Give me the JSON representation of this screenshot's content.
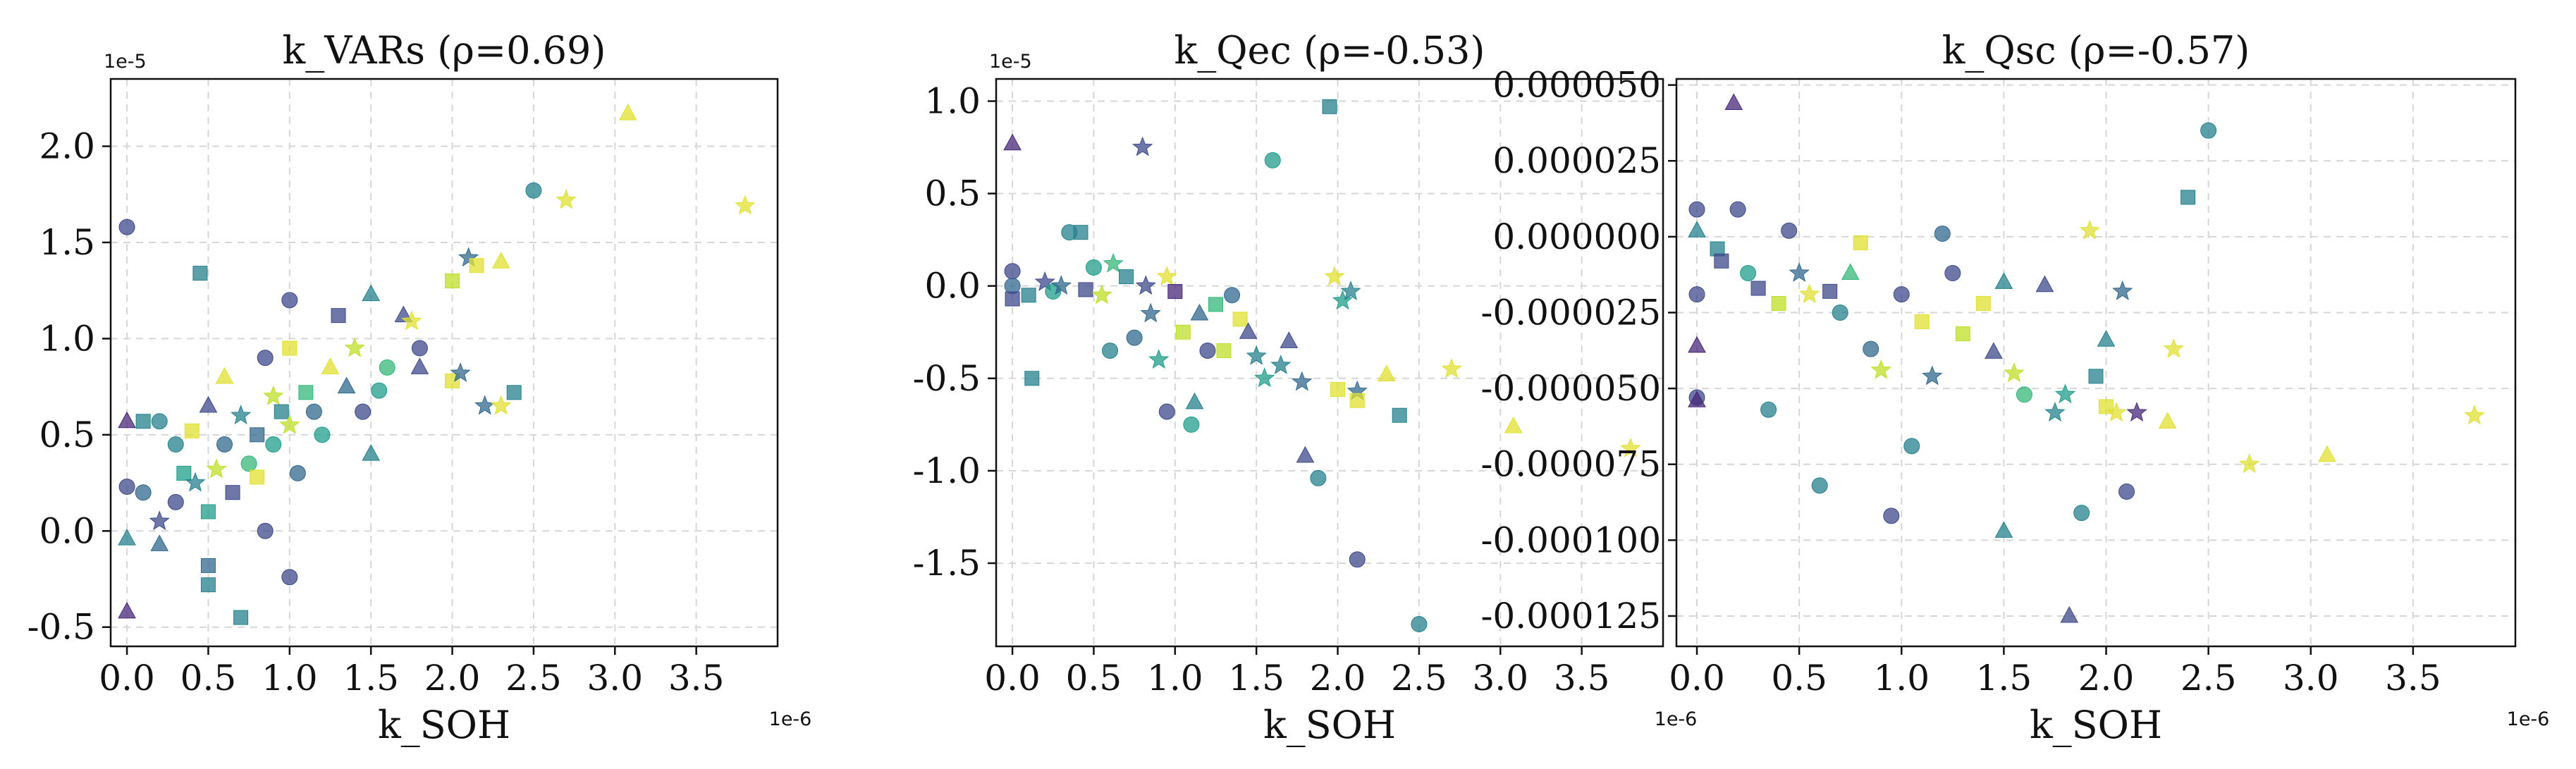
{
  "figure": {
    "colors": [
      "#482878",
      "#3e4a89",
      "#31688e",
      "#26828e",
      "#1f9e89",
      "#35b779",
      "#bddf26",
      "#e0e031"
    ]
  },
  "chart_data": [
    {
      "type": "scatter",
      "title": "k_VARs (ρ=0.69)",
      "xlabel": "k_SOH",
      "ylabel": "",
      "x_offset": "1e-6",
      "y_offset": "1e-5",
      "xlim": [
        -0.1,
        4.0
      ],
      "ylim": [
        -0.6,
        2.35
      ],
      "xticks": [
        0.0,
        0.5,
        1.0,
        1.5,
        2.0,
        2.5,
        3.0,
        3.5
      ],
      "xtick_labels": [
        "0.0",
        "0.5",
        "1.0",
        "1.5",
        "2.0",
        "2.5",
        "3.0",
        "3.5"
      ],
      "yticks": [
        -0.5,
        0.0,
        0.5,
        1.0,
        1.5,
        2.0
      ],
      "ytick_labels": [
        "-0.5",
        "0.0",
        "0.5",
        "1.0",
        "1.5",
        "2.0"
      ],
      "grid": true,
      "points": [
        [
          0.0,
          1.58,
          1,
          "o"
        ],
        [
          0.0,
          0.57,
          0,
          "^"
        ],
        [
          0.0,
          0.23,
          1,
          "o"
        ],
        [
          0.0,
          -0.04,
          3,
          "^"
        ],
        [
          0.0,
          -0.42,
          0,
          "^"
        ],
        [
          0.1,
          0.57,
          3,
          "s"
        ],
        [
          0.1,
          0.2,
          2,
          "o"
        ],
        [
          0.2,
          0.57,
          3,
          "o"
        ],
        [
          0.2,
          0.05,
          1,
          "*"
        ],
        [
          0.2,
          -0.07,
          2,
          "^"
        ],
        [
          0.3,
          0.45,
          3,
          "o"
        ],
        [
          0.3,
          0.15,
          1,
          "o"
        ],
        [
          0.35,
          0.3,
          4,
          "s"
        ],
        [
          0.4,
          0.52,
          7,
          "s"
        ],
        [
          0.42,
          0.25,
          3,
          "*"
        ],
        [
          0.45,
          1.34,
          3,
          "s"
        ],
        [
          0.5,
          0.65,
          1,
          "^"
        ],
        [
          0.5,
          0.1,
          4,
          "s"
        ],
        [
          0.5,
          -0.18,
          2,
          "s"
        ],
        [
          0.5,
          -0.28,
          3,
          "s"
        ],
        [
          0.55,
          0.32,
          6,
          "*"
        ],
        [
          0.6,
          0.8,
          7,
          "^"
        ],
        [
          0.6,
          0.45,
          2,
          "o"
        ],
        [
          0.65,
          0.2,
          1,
          "s"
        ],
        [
          0.7,
          0.6,
          3,
          "*"
        ],
        [
          0.7,
          -0.45,
          3,
          "s"
        ],
        [
          0.75,
          0.35,
          5,
          "o"
        ],
        [
          0.8,
          0.5,
          2,
          "s"
        ],
        [
          0.8,
          0.28,
          7,
          "s"
        ],
        [
          0.85,
          0.9,
          1,
          "o"
        ],
        [
          0.85,
          0.0,
          1,
          "o"
        ],
        [
          0.9,
          0.7,
          6,
          "*"
        ],
        [
          0.9,
          0.45,
          4,
          "o"
        ],
        [
          0.95,
          0.62,
          3,
          "s"
        ],
        [
          1.0,
          1.2,
          1,
          "o"
        ],
        [
          1.0,
          0.95,
          7,
          "s"
        ],
        [
          1.0,
          0.55,
          6,
          "*"
        ],
        [
          1.0,
          -0.24,
          1,
          "o"
        ],
        [
          1.05,
          0.3,
          2,
          "o"
        ],
        [
          1.1,
          0.72,
          5,
          "s"
        ],
        [
          1.15,
          0.62,
          2,
          "o"
        ],
        [
          1.2,
          0.5,
          4,
          "o"
        ],
        [
          1.25,
          0.85,
          7,
          "^"
        ],
        [
          1.3,
          1.12,
          1,
          "s"
        ],
        [
          1.35,
          0.75,
          2,
          "^"
        ],
        [
          1.4,
          0.95,
          6,
          "*"
        ],
        [
          1.45,
          0.62,
          1,
          "o"
        ],
        [
          1.5,
          1.23,
          3,
          "^"
        ],
        [
          1.5,
          0.4,
          3,
          "^"
        ],
        [
          1.55,
          0.73,
          4,
          "o"
        ],
        [
          1.6,
          0.85,
          5,
          "o"
        ],
        [
          1.7,
          1.12,
          1,
          "^"
        ],
        [
          1.75,
          1.09,
          7,
          "*"
        ],
        [
          1.8,
          0.95,
          1,
          "o"
        ],
        [
          1.8,
          0.85,
          1,
          "^"
        ],
        [
          2.0,
          1.3,
          6,
          "s"
        ],
        [
          2.0,
          0.78,
          7,
          "s"
        ],
        [
          2.05,
          0.82,
          2,
          "*"
        ],
        [
          2.1,
          1.42,
          2,
          "*"
        ],
        [
          2.15,
          1.38,
          7,
          "s"
        ],
        [
          2.2,
          0.65,
          2,
          "*"
        ],
        [
          2.3,
          1.4,
          7,
          "^"
        ],
        [
          2.3,
          0.65,
          7,
          "*"
        ],
        [
          2.38,
          0.72,
          3,
          "s"
        ],
        [
          2.5,
          1.77,
          3,
          "o"
        ],
        [
          2.7,
          1.72,
          7,
          "*"
        ],
        [
          3.08,
          2.17,
          7,
          "^"
        ],
        [
          3.8,
          1.69,
          7,
          "*"
        ]
      ]
    },
    {
      "type": "scatter",
      "title": "k_Qec (ρ=-0.53)",
      "xlabel": "k_SOH",
      "ylabel": "",
      "x_offset": "1e-6",
      "y_offset": "1e-5",
      "xlim": [
        -0.1,
        4.0
      ],
      "ylim": [
        -1.95,
        1.12
      ],
      "xticks": [
        0.0,
        0.5,
        1.0,
        1.5,
        2.0,
        2.5,
        3.0,
        3.5
      ],
      "xtick_labels": [
        "0.0",
        "0.5",
        "1.0",
        "1.5",
        "2.0",
        "2.5",
        "3.0",
        "3.5"
      ],
      "yticks": [
        -1.5,
        -1.0,
        -0.5,
        0.0,
        0.5,
        1.0
      ],
      "ytick_labels": [
        "-1.5",
        "-1.0",
        "-0.5",
        "0.0",
        "0.5",
        "1.0"
      ],
      "grid": true,
      "points": [
        [
          0.0,
          0.77,
          0,
          "^"
        ],
        [
          0.0,
          0.08,
          1,
          "o"
        ],
        [
          0.0,
          0.0,
          2,
          "o"
        ],
        [
          0.0,
          -0.07,
          1,
          "s"
        ],
        [
          0.1,
          -0.05,
          3,
          "s"
        ],
        [
          0.12,
          -0.5,
          3,
          "s"
        ],
        [
          0.2,
          0.02,
          1,
          "*"
        ],
        [
          0.25,
          -0.03,
          4,
          "o"
        ],
        [
          0.3,
          0.0,
          2,
          "*"
        ],
        [
          0.35,
          0.29,
          3,
          "o"
        ],
        [
          0.42,
          0.29,
          3,
          "s"
        ],
        [
          0.45,
          -0.02,
          1,
          "s"
        ],
        [
          0.5,
          0.1,
          4,
          "o"
        ],
        [
          0.55,
          -0.05,
          6,
          "*"
        ],
        [
          0.6,
          -0.35,
          3,
          "o"
        ],
        [
          0.62,
          0.12,
          5,
          "*"
        ],
        [
          0.7,
          0.05,
          3,
          "s"
        ],
        [
          0.75,
          -0.28,
          2,
          "o"
        ],
        [
          0.8,
          0.75,
          1,
          "*"
        ],
        [
          0.82,
          0.0,
          1,
          "*"
        ],
        [
          0.85,
          -0.15,
          2,
          "*"
        ],
        [
          0.9,
          -0.4,
          4,
          "*"
        ],
        [
          0.95,
          0.05,
          7,
          "*"
        ],
        [
          0.95,
          -0.68,
          1,
          "o"
        ],
        [
          1.0,
          -0.03,
          0,
          "s"
        ],
        [
          1.05,
          -0.25,
          6,
          "s"
        ],
        [
          1.1,
          -0.75,
          4,
          "o"
        ],
        [
          1.12,
          -0.63,
          3,
          "^"
        ],
        [
          1.15,
          -0.15,
          2,
          "^"
        ],
        [
          1.2,
          -0.35,
          1,
          "o"
        ],
        [
          1.25,
          -0.1,
          5,
          "s"
        ],
        [
          1.3,
          -0.35,
          6,
          "s"
        ],
        [
          1.35,
          -0.05,
          2,
          "o"
        ],
        [
          1.4,
          -0.18,
          7,
          "s"
        ],
        [
          1.45,
          -0.25,
          1,
          "^"
        ],
        [
          1.5,
          -0.38,
          3,
          "*"
        ],
        [
          1.55,
          -0.5,
          4,
          "*"
        ],
        [
          1.6,
          0.68,
          4,
          "o"
        ],
        [
          1.65,
          -0.43,
          3,
          "*"
        ],
        [
          1.7,
          -0.3,
          1,
          "^"
        ],
        [
          1.78,
          -0.52,
          2,
          "*"
        ],
        [
          1.8,
          -0.92,
          1,
          "^"
        ],
        [
          1.88,
          -1.04,
          3,
          "o"
        ],
        [
          1.95,
          0.97,
          3,
          "s"
        ],
        [
          1.98,
          0.05,
          7,
          "*"
        ],
        [
          2.0,
          -0.56,
          7,
          "s"
        ],
        [
          2.03,
          -0.08,
          4,
          "*"
        ],
        [
          2.08,
          -0.03,
          3,
          "*"
        ],
        [
          2.12,
          -0.57,
          2,
          "*"
        ],
        [
          2.12,
          -0.62,
          7,
          "s"
        ],
        [
          2.12,
          -1.48,
          1,
          "o"
        ],
        [
          2.3,
          -0.48,
          7,
          "^"
        ],
        [
          2.38,
          -0.7,
          3,
          "s"
        ],
        [
          2.5,
          -1.83,
          3,
          "o"
        ],
        [
          2.7,
          -0.45,
          7,
          "*"
        ],
        [
          3.08,
          -0.76,
          7,
          "^"
        ],
        [
          3.8,
          -0.88,
          7,
          "*"
        ]
      ]
    },
    {
      "type": "scatter",
      "title": "k_Qsc (ρ=-0.57)",
      "xlabel": "k_SOH",
      "ylabel": "",
      "x_offset": "1e-6",
      "y_offset": "",
      "xlim": [
        -0.1,
        4.0
      ],
      "ylim": [
        -0.000135,
        5.2e-05
      ],
      "xticks": [
        0.0,
        0.5,
        1.0,
        1.5,
        2.0,
        2.5,
        3.0,
        3.5
      ],
      "xtick_labels": [
        "0.0",
        "0.5",
        "1.0",
        "1.5",
        "2.0",
        "2.5",
        "3.0",
        "3.5"
      ],
      "yticks": [
        5e-05,
        2.5e-05,
        0.0,
        -2.5e-05,
        -5e-05,
        -7.5e-05,
        -0.0001,
        -0.000125
      ],
      "ytick_labels": [
        "0.000050",
        "0.000025",
        "0.000000",
        "-0.000025",
        "-0.000050",
        "-0.000075",
        "-0.000100",
        "-0.000125"
      ],
      "grid": true,
      "points": [
        [
          0.0,
          9e-06,
          1,
          "o"
        ],
        [
          0.0,
          2e-06,
          3,
          "^"
        ],
        [
          0.0,
          -1.9e-05,
          1,
          "o"
        ],
        [
          0.0,
          -3.6e-05,
          0,
          "^"
        ],
        [
          0.0,
          -5.3e-05,
          1,
          "o"
        ],
        [
          0.0,
          -5.4e-05,
          0,
          "^"
        ],
        [
          0.1,
          -4e-06,
          3,
          "s"
        ],
        [
          0.12,
          -8e-06,
          1,
          "s"
        ],
        [
          0.18,
          4.4e-05,
          0,
          "^"
        ],
        [
          0.2,
          9e-06,
          1,
          "o"
        ],
        [
          0.25,
          -1.2e-05,
          4,
          "o"
        ],
        [
          0.3,
          -1.7e-05,
          1,
          "s"
        ],
        [
          0.35,
          -5.7e-05,
          3,
          "o"
        ],
        [
          0.4,
          -2.2e-05,
          6,
          "s"
        ],
        [
          0.45,
          2e-06,
          1,
          "o"
        ],
        [
          0.5,
          -1.2e-05,
          2,
          "*"
        ],
        [
          0.55,
          -1.9e-05,
          7,
          "*"
        ],
        [
          0.6,
          -8.2e-05,
          3,
          "o"
        ],
        [
          0.65,
          -1.8e-05,
          1,
          "s"
        ],
        [
          0.7,
          -2.5e-05,
          3,
          "o"
        ],
        [
          0.75,
          -1.2e-05,
          5,
          "^"
        ],
        [
          0.8,
          -2e-06,
          7,
          "s"
        ],
        [
          0.85,
          -3.7e-05,
          2,
          "o"
        ],
        [
          0.9,
          -4.4e-05,
          6,
          "*"
        ],
        [
          0.95,
          -9.2e-05,
          1,
          "o"
        ],
        [
          1.0,
          -1.9e-05,
          1,
          "o"
        ],
        [
          1.05,
          -6.9e-05,
          3,
          "o"
        ],
        [
          1.1,
          -2.8e-05,
          7,
          "s"
        ],
        [
          1.15,
          -4.6e-05,
          2,
          "*"
        ],
        [
          1.2,
          1e-06,
          2,
          "o"
        ],
        [
          1.25,
          -1.2e-05,
          1,
          "o"
        ],
        [
          1.3,
          -3.2e-05,
          6,
          "s"
        ],
        [
          1.4,
          -2.2e-05,
          7,
          "s"
        ],
        [
          1.45,
          -3.8e-05,
          1,
          "^"
        ],
        [
          1.5,
          -1.5e-05,
          3,
          "^"
        ],
        [
          1.5,
          -9.7e-05,
          3,
          "^"
        ],
        [
          1.55,
          -4.5e-05,
          6,
          "*"
        ],
        [
          1.6,
          -5.2e-05,
          5,
          "o"
        ],
        [
          1.7,
          -1.6e-05,
          1,
          "^"
        ],
        [
          1.75,
          -5.8e-05,
          3,
          "*"
        ],
        [
          1.8,
          -5.2e-05,
          4,
          "*"
        ],
        [
          1.82,
          -0.000125,
          1,
          "^"
        ],
        [
          1.88,
          -9.1e-05,
          3,
          "o"
        ],
        [
          1.92,
          2e-06,
          7,
          "*"
        ],
        [
          1.95,
          -4.6e-05,
          3,
          "s"
        ],
        [
          2.0,
          -3.4e-05,
          3,
          "^"
        ],
        [
          2.0,
          -5.6e-05,
          7,
          "s"
        ],
        [
          2.05,
          -5.8e-05,
          7,
          "*"
        ],
        [
          2.08,
          -1.8e-05,
          2,
          "*"
        ],
        [
          2.1,
          -8.4e-05,
          1,
          "o"
        ],
        [
          2.15,
          -5.8e-05,
          0,
          "*"
        ],
        [
          2.3,
          -6.1e-05,
          7,
          "^"
        ],
        [
          2.33,
          -3.7e-05,
          7,
          "*"
        ],
        [
          2.4,
          1.3e-05,
          3,
          "s"
        ],
        [
          2.5,
          3.5e-05,
          3,
          "o"
        ],
        [
          2.7,
          -7.5e-05,
          7,
          "*"
        ],
        [
          3.08,
          -7.2e-05,
          7,
          "^"
        ],
        [
          3.8,
          -5.9e-05,
          7,
          "*"
        ]
      ]
    }
  ]
}
